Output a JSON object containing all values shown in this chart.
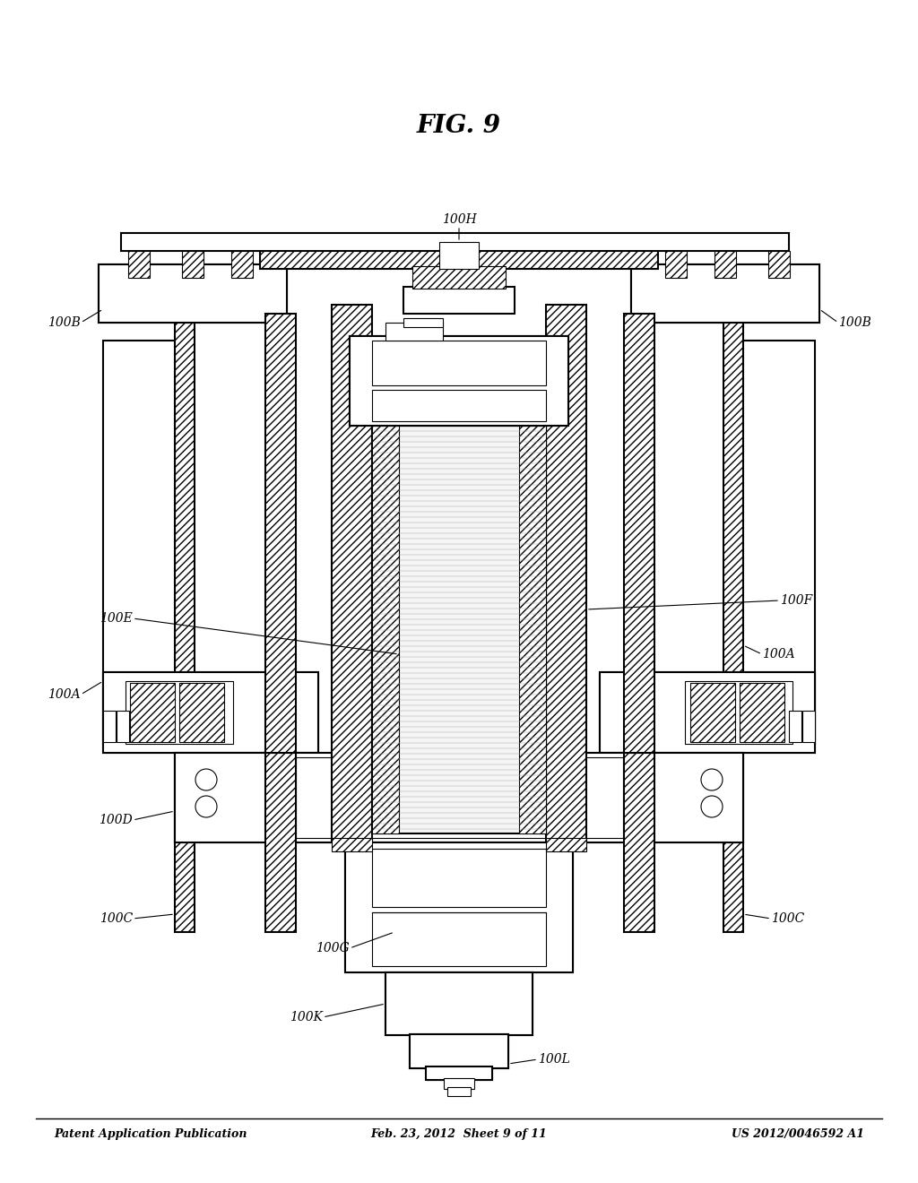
{
  "header_left": "Patent Application Publication",
  "header_mid": "Feb. 23, 2012  Sheet 9 of 11",
  "header_right": "US 2012/0046592 A1",
  "fig_caption": "FIG. 9",
  "bg_color": "#ffffff",
  "lc": "#000000"
}
